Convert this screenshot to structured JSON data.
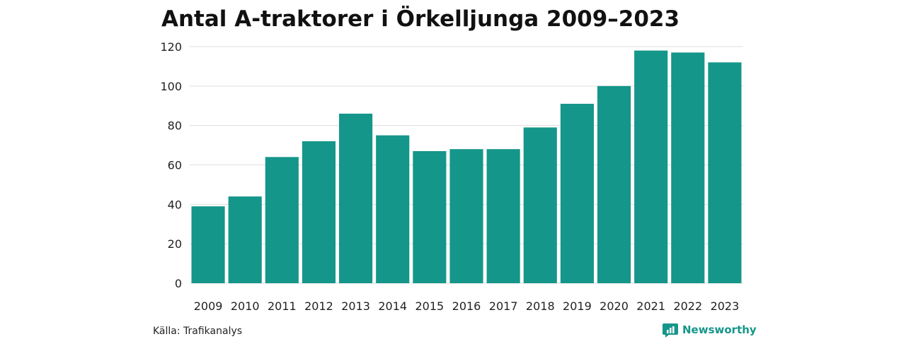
{
  "chart_data": {
    "type": "bar",
    "title": "Antal A-traktorer i Örkelljunga 2009–2023",
    "xlabel": "",
    "ylabel": "",
    "categories": [
      "2009",
      "2010",
      "2011",
      "2012",
      "2013",
      "2014",
      "2015",
      "2016",
      "2017",
      "2018",
      "2019",
      "2020",
      "2021",
      "2022",
      "2023"
    ],
    "values": [
      39,
      44,
      64,
      72,
      86,
      75,
      67,
      68,
      68,
      79,
      91,
      100,
      118,
      117,
      112
    ],
    "ylim": [
      0,
      120
    ],
    "yticks": [
      "0",
      "20",
      "40",
      "60",
      "80",
      "100",
      "120"
    ],
    "grid": true,
    "legend": "none"
  },
  "footer": {
    "source": "Källa: Trafikanalys",
    "brand": "Newsworthy"
  },
  "colors": {
    "bar": "#15968a",
    "grid": "#dddddd",
    "brand": "#15968a"
  },
  "icons": {
    "brand_logo": "newsworthy-logo-icon"
  }
}
